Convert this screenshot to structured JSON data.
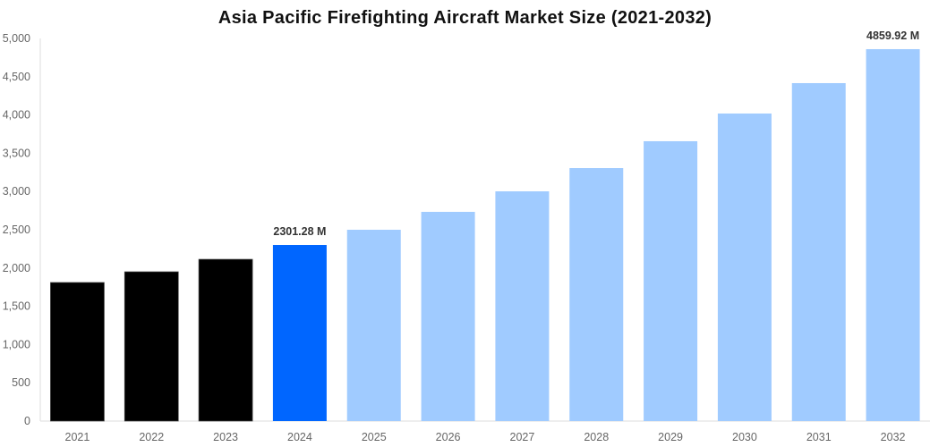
{
  "chart_data": {
    "type": "bar",
    "title": "Asia Pacific Firefighting Aircraft Market Size (2021-2032)",
    "xlabel": "",
    "ylabel": "",
    "ylim": [
      0,
      5000
    ],
    "yticks": [
      "0",
      "500",
      "1,000",
      "1,500",
      "2,000",
      "2,500",
      "3,000",
      "3,500",
      "4,000",
      "4,500",
      "5,000"
    ],
    "ytick_values": [
      0,
      500,
      1000,
      1500,
      2000,
      2500,
      3000,
      3500,
      4000,
      4500,
      5000
    ],
    "categories": [
      "2021",
      "2022",
      "2023",
      "2024",
      "2025",
      "2026",
      "2027",
      "2028",
      "2029",
      "2030",
      "2031",
      "2032"
    ],
    "values": [
      1811,
      1951,
      2114,
      2301.28,
      2500,
      2734,
      3002,
      3306,
      3657,
      4019,
      4416,
      4859.92
    ],
    "bar_colors": [
      "#000000",
      "#000000",
      "#000000",
      "#0066ff",
      "#a0cbff",
      "#a0cbff",
      "#a0cbff",
      "#a0cbff",
      "#a0cbff",
      "#a0cbff",
      "#a0cbff",
      "#a0cbff"
    ],
    "data_labels": {
      "3": "2301.28 M",
      "11": "4859.92 M"
    },
    "grid": false,
    "legend": "none"
  }
}
